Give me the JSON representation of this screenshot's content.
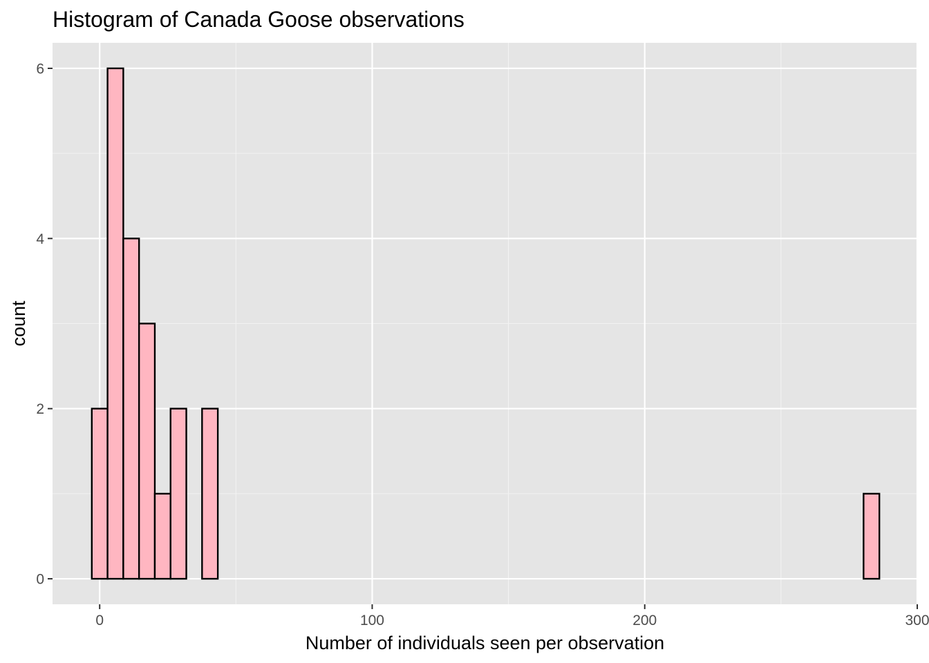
{
  "chart_data": {
    "type": "bar",
    "title": "Histogram of Canada Goose observations",
    "xlabel": "Number of individuals seen per observation",
    "ylabel": "count",
    "xlim": [
      -17.3,
      300
    ],
    "ylim": [
      -0.3,
      6.3
    ],
    "x_ticks": [
      0,
      100,
      200,
      300
    ],
    "x_tick_labels": [
      "0",
      "100",
      "200",
      "300"
    ],
    "y_ticks": [
      0,
      2,
      4,
      6
    ],
    "y_tick_labels": [
      "0",
      "2",
      "4",
      "6"
    ],
    "grid": true,
    "bin_width": 5.78,
    "bins": [
      {
        "x0": -2.89,
        "x1": 2.89,
        "count": 2
      },
      {
        "x0": 2.89,
        "x1": 8.67,
        "count": 6
      },
      {
        "x0": 8.67,
        "x1": 14.45,
        "count": 4
      },
      {
        "x0": 14.45,
        "x1": 20.23,
        "count": 3
      },
      {
        "x0": 20.23,
        "x1": 26.01,
        "count": 1
      },
      {
        "x0": 26.01,
        "x1": 31.79,
        "count": 2
      },
      {
        "x0": 31.79,
        "x1": 37.57,
        "count": 0
      },
      {
        "x0": 37.57,
        "x1": 43.35,
        "count": 2
      },
      {
        "x0": 43.35,
        "x1": 280.3,
        "count": 0
      },
      {
        "x0": 280.3,
        "x1": 286.1,
        "count": 1
      }
    ],
    "colors": {
      "bar_fill": "#ffb6c1",
      "bar_outline": "#000000",
      "panel_background": "#e5e5e5",
      "grid_major": "#ffffff",
      "grid_minor": "#f2f2f2",
      "tick_text": "#4d4d4d"
    }
  }
}
